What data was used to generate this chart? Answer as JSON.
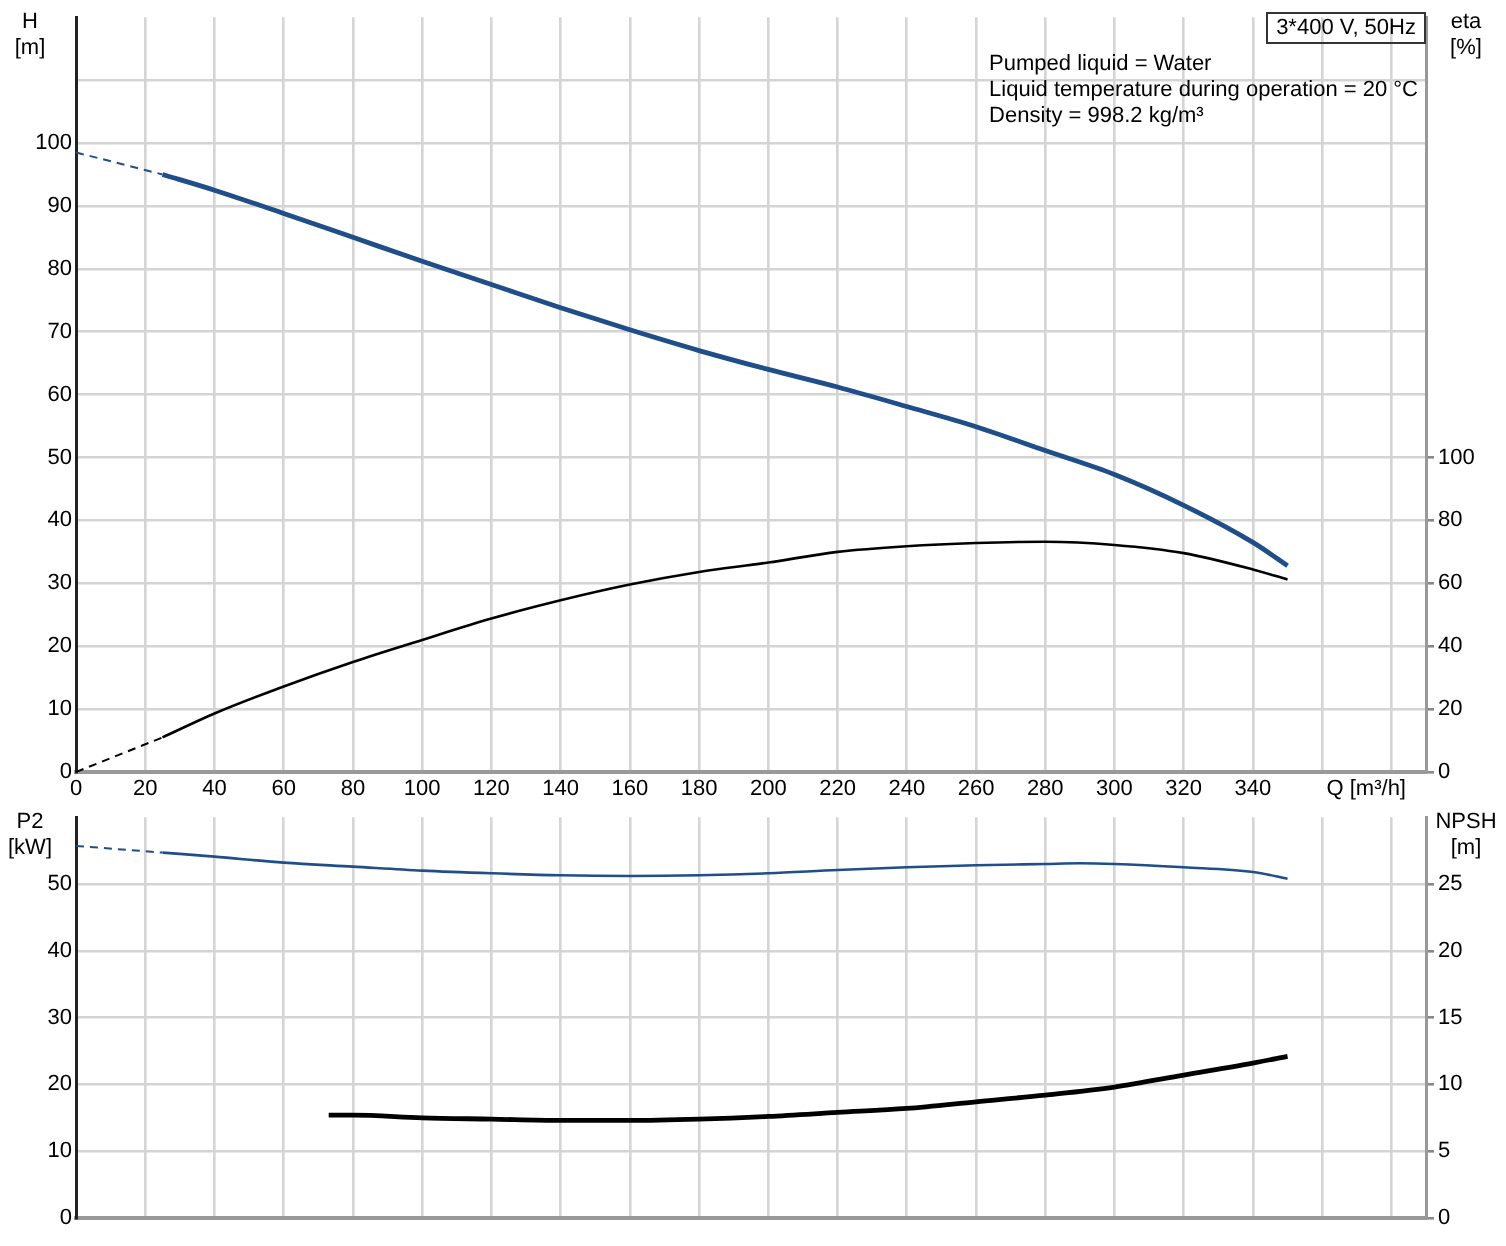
{
  "chart_data": [
    {
      "type": "line",
      "xlabel": "Q [m³/h]",
      "ylabel": "H [m]",
      "y2label": "eta [%]",
      "xlim": [
        0,
        390
      ],
      "xticks": [
        0,
        20,
        40,
        60,
        80,
        100,
        120,
        140,
        160,
        180,
        200,
        220,
        240,
        260,
        280,
        300,
        320,
        340,
        {
          "value": 360,
          "label": null
        },
        {
          "value": 380,
          "label": null
        }
      ],
      "ylim": [
        0,
        120
      ],
      "yticks": [
        0,
        10,
        20,
        30,
        40,
        50,
        60,
        70,
        80,
        90,
        100,
        {
          "value": 110,
          "label": null
        }
      ],
      "y2lim": [
        0,
        240
      ],
      "y2ticks": [
        0,
        20,
        40,
        60,
        80,
        100
      ],
      "grid": true,
      "marker": "none",
      "annotations": [
        "3*400 V, 50Hz",
        "Pumped liquid = Water",
        "Liquid temperature during operation = 20 °C",
        "Density = 998.2 kg/m³"
      ],
      "series": [
        {
          "color": "#1f4e89",
          "line_style": "dashed",
          "x": [
            0,
            25
          ],
          "values": [
            98.5,
            95
          ]
        },
        {
          "color": "#1f4e89",
          "line_style": "solid",
          "x": [
            25,
            40,
            60,
            80,
            100,
            120,
            140,
            160,
            180,
            200,
            220,
            240,
            260,
            280,
            300,
            320,
            340,
            350
          ],
          "values": [
            95,
            92.5,
            88.8,
            85,
            81.2,
            77.5,
            73.8,
            70.3,
            67,
            64,
            61.2,
            58.1,
            54.9,
            51.1,
            47.3,
            42.4,
            36.5,
            32.8
          ]
        },
        {
          "color": "#000000",
          "line_style": "dashed",
          "axis": "y2",
          "x": [
            0,
            25
          ],
          "values": [
            0,
            11
          ]
        },
        {
          "color": "#000000",
          "line_style": "solid",
          "axis": "y2",
          "x": [
            25,
            40,
            60,
            80,
            100,
            120,
            140,
            160,
            180,
            200,
            220,
            240,
            260,
            280,
            300,
            320,
            340,
            350
          ],
          "values": [
            11,
            18.6,
            27.2,
            35,
            42,
            48.8,
            54.6,
            59.6,
            63.6,
            66.6,
            70,
            71.8,
            72.8,
            73.2,
            72.2,
            69.6,
            64.4,
            61.2
          ]
        }
      ]
    },
    {
      "type": "line",
      "ylabel": "P2 [kW]",
      "y2label": "NPSH [m]",
      "xlim": [
        0,
        390
      ],
      "xticks": [
        0,
        20,
        40,
        60,
        80,
        100,
        120,
        140,
        160,
        180,
        200,
        220,
        240,
        260,
        280,
        300,
        320,
        340,
        360,
        380
      ],
      "tick_labels": "y",
      "ylim": [
        0,
        60
      ],
      "yticks": [
        0,
        10,
        20,
        30,
        40,
        50
      ],
      "y2lim": [
        0,
        30
      ],
      "y2ticks": [
        0,
        5,
        10,
        15,
        20,
        25
      ],
      "grid": true,
      "marker": "none",
      "series": [
        {
          "color": "#1f4e89",
          "line_style": "dashed",
          "x": [
            0,
            25
          ],
          "values": [
            55.7,
            54.7
          ]
        },
        {
          "color": "#1f4e89",
          "line_style": "solid",
          "x": [
            25,
            40,
            60,
            80,
            100,
            120,
            140,
            160,
            180,
            200,
            220,
            240,
            260,
            280,
            290,
            300,
            320,
            340,
            350
          ],
          "values": [
            54.7,
            54.1,
            53.2,
            52.6,
            52,
            51.6,
            51.3,
            51.2,
            51.3,
            51.6,
            52.1,
            52.5,
            52.8,
            53,
            53.1,
            53,
            52.5,
            51.8,
            50.8
          ]
        },
        {
          "color": "#000000",
          "line_style": "solid",
          "axis": "y2",
          "x": [
            73,
            80,
            100,
            120,
            140,
            160,
            180,
            200,
            220,
            240,
            260,
            280,
            300,
            320,
            340,
            350
          ],
          "values": [
            7.7,
            7.7,
            7.5,
            7.4,
            7.3,
            7.3,
            7.4,
            7.6,
            7.9,
            8.2,
            8.7,
            9.2,
            9.8,
            10.7,
            11.6,
            12.1
          ]
        }
      ]
    }
  ]
}
